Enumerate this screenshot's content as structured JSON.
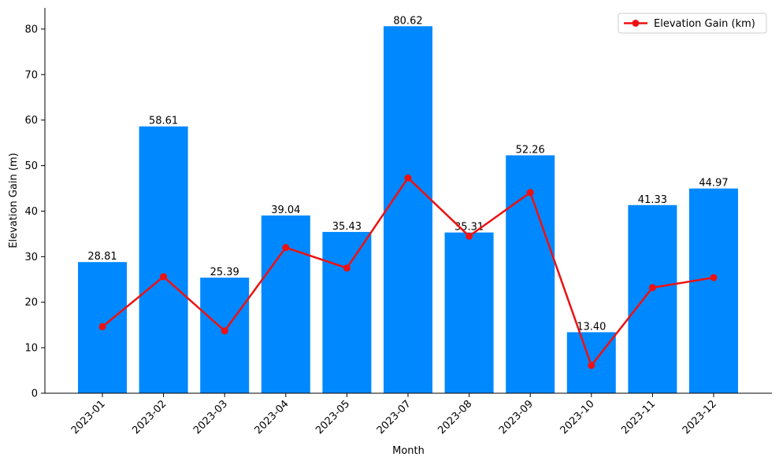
{
  "chart_data": {
    "type": "bar",
    "categories": [
      "2023-01",
      "2023-02",
      "2023-03",
      "2023-04",
      "2023-05",
      "2023-07",
      "2023-08",
      "2023-09",
      "2023-10",
      "2023-11",
      "2023-12"
    ],
    "series": [
      {
        "type": "bar",
        "values": [
          28.81,
          58.61,
          25.39,
          39.04,
          35.43,
          80.62,
          35.31,
          52.26,
          13.4,
          41.33,
          44.97
        ],
        "data_labels": [
          "28.81",
          "58.61",
          "25.39",
          "39.04",
          "35.43",
          "80.62",
          "35.31",
          "52.26",
          "13.40",
          "41.33",
          "44.97"
        ],
        "color": "#0088ff"
      },
      {
        "type": "line",
        "name": "Elevation Gain (km)",
        "values": [
          14.6,
          25.6,
          13.7,
          32.0,
          27.5,
          47.3,
          34.5,
          44.1,
          6.1,
          23.2,
          25.4
        ],
        "color": "#ee1111",
        "marker": "circle"
      }
    ],
    "xlabel": "Month",
    "ylabel": "Elevation Gain (m)",
    "ylim": [
      0,
      84.65
    ],
    "yticks": [
      0,
      10,
      20,
      30,
      40,
      50,
      60,
      70,
      80
    ],
    "grid": false,
    "legend": "top-right"
  }
}
